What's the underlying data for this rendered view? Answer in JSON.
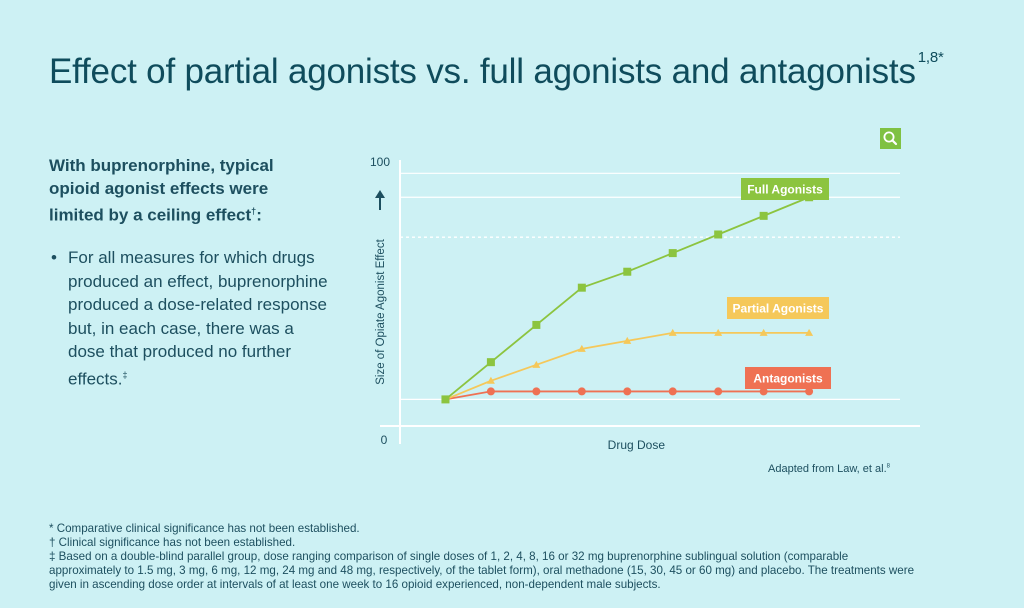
{
  "title": {
    "main": "Effect of partial agonists vs. full agonists and antagonists",
    "refs": "1,8*"
  },
  "intro": {
    "text": "With buprenorphine, typical opioid agonist effects were limited by a ceiling effect",
    "mark": "†",
    "suffix": ":"
  },
  "bullet": {
    "dot": "•",
    "text": "For all measures for which drugs produced an effect, buprenorphine produced a dose-related response but, in each case, there was a dose that produced no further effects.",
    "mark": "‡"
  },
  "zoom_icon": "search-icon",
  "adapted": {
    "text": "Adapted from Law, et al.",
    "ref": "8"
  },
  "footnotes": [
    "* Comparative clinical significance has not been established.",
    "† Clinical significance has not been established.",
    "‡ Based on a double-blind parallel group, dose ranging comparison of single doses of 1, 2, 4, 8, 16 or 32 mg buprenorphine sublingual solution (comparable approximately to 1.5 mg, 3 mg, 6 mg, 12 mg, 24 mg and 48 mg, respectively, of the tablet form), oral methadone (15, 30, 45 or 60 mg) and placebo. The treatments were given in ascending dose order at intervals of at least one week to 16 opioid experienced, non-dependent male subjects."
  ],
  "colors": {
    "full": "#8cc43f",
    "partial": "#f5c85a",
    "antagonist": "#ef7153",
    "axis": "#ffffff",
    "text": "#1d4f5f"
  },
  "chart_data": {
    "type": "line",
    "title": "",
    "xlabel": "Drug Dose",
    "ylabel": "Size of Opiate Agonist Effect",
    "y_ticks": [
      "0",
      "100"
    ],
    "ylim": [
      0,
      100
    ],
    "x": [
      0,
      1,
      2,
      3,
      4,
      5,
      6,
      7,
      8
    ],
    "xlim": [
      -1,
      10
    ],
    "grid_dashed_at": [
      71
    ],
    "grid_solid_at": [
      95,
      86,
      10
    ],
    "series": [
      {
        "name": "Full Agonists",
        "label": "Full Agonists",
        "marker": "square",
        "color": "#8cc43f",
        "values": [
          10,
          24,
          38,
          52,
          58,
          65,
          72,
          79,
          86
        ]
      },
      {
        "name": "Partial Agonists",
        "label": "Partial Agonists",
        "marker": "triangle",
        "color": "#f5c85a",
        "values": [
          10,
          17,
          23,
          29,
          32,
          35,
          35,
          35,
          35
        ]
      },
      {
        "name": "Antagonists",
        "label": "Antagonists",
        "marker": "circle",
        "color": "#ef7153",
        "values": [
          10,
          13,
          13,
          13,
          13,
          13,
          13,
          13,
          13
        ]
      }
    ]
  }
}
